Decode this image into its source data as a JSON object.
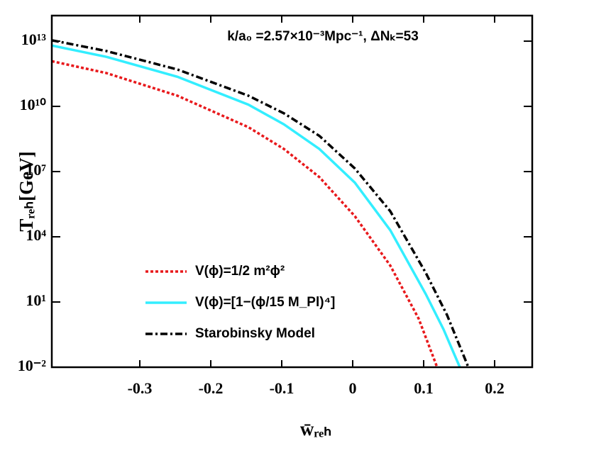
{
  "chart_data": {
    "type": "line",
    "annotation": "k/a₀ =2.57×10⁻³Mpc⁻¹, ΔNₖ=53",
    "x_label": "w̄ᵣₑₕ",
    "y_label": "Tᵣₑₕ[GeV]",
    "log_y": true,
    "legend": "lower left",
    "xlim": [
      -0.424,
      0.253
    ],
    "xticks": [
      -0.3,
      -0.2,
      -0.1,
      0.0,
      0.1,
      0.2
    ],
    "ylim": [
      0.01,
      150000000000000.0
    ],
    "yticks": [
      {
        "value": 10000000000000.0,
        "label": "10¹³"
      },
      {
        "value": 10000000000.0,
        "label": "10¹⁰"
      },
      {
        "value": 10000000.0,
        "label": "10⁷"
      },
      {
        "value": 10000.0,
        "label": "10⁴"
      },
      {
        "value": 10,
        "label": "10¹"
      },
      {
        "value": 0.01,
        "label": "10⁻²"
      }
    ],
    "series": [
      {
        "name": "V(ϕ)=1/2 m²ϕ²",
        "color": "#e8191c",
        "dash": "4,3",
        "x": [
          -0.424,
          -0.347,
          -0.247,
          -0.147,
          -0.097,
          -0.047,
          0.003,
          0.053,
          0.093,
          0.119
        ],
        "values": [
          1200000000000.0,
          340000000000.0,
          31000000000.0,
          1100000000.0,
          110000000.0,
          5600000.0,
          89000.0,
          470,
          1.7,
          0.01
        ]
      },
      {
        "name": "V(ϕ)=[1−(ϕ/15 M_Pl)⁴]",
        "color": "#33eeff",
        "dash": "none",
        "x": [
          -0.424,
          -0.347,
          -0.247,
          -0.147,
          -0.097,
          -0.047,
          0.003,
          0.053,
          0.103,
          0.128,
          0.151
        ],
        "values": [
          6300000000000.0,
          1900000000000.0,
          230000000000.0,
          12000000000.0,
          1500000000.0,
          110000000.0,
          3100000.0,
          20000.0,
          23,
          0.55,
          0.01
        ]
      },
      {
        "name": "Starobinsky Model",
        "color": "#000000",
        "dash": "10,4,3,4",
        "x": [
          -0.424,
          -0.347,
          -0.247,
          -0.147,
          -0.097,
          -0.047,
          0.003,
          0.053,
          0.103,
          0.133,
          0.163
        ],
        "values": [
          11000000000000.0,
          3500000000000.0,
          500000000000.0,
          31000000000.0,
          4800000000.0,
          440000000.0,
          14000000.0,
          150000.0,
          220,
          2.5,
          0.01
        ]
      }
    ]
  }
}
